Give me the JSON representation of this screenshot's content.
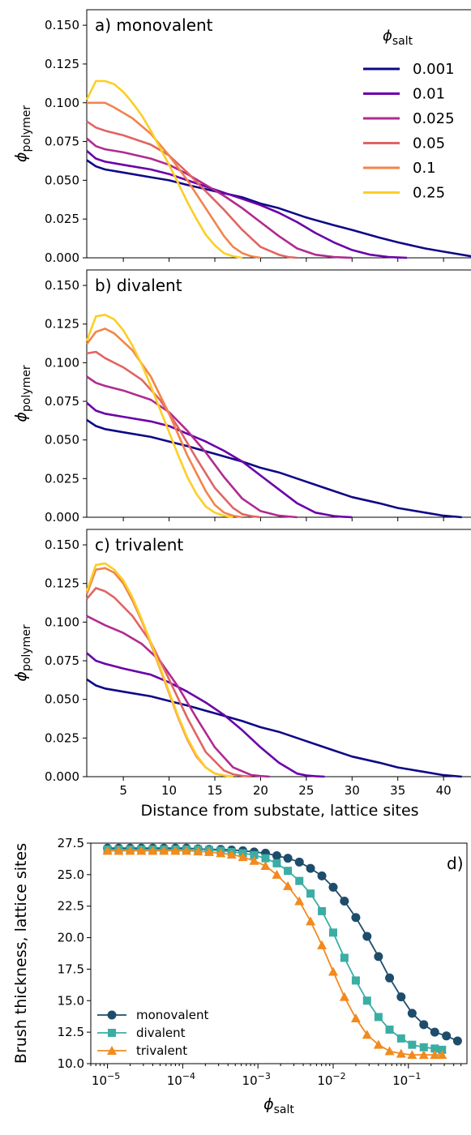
{
  "chart_data": [
    {
      "type": "line",
      "panel_label": "a) monovalent",
      "ylabel_main": "ϕ",
      "ylabel_sub": "polymer",
      "ylim": [
        0,
        0.16
      ],
      "yticks": [
        "0.000",
        "0.025",
        "0.050",
        "0.075",
        "0.100",
        "0.125",
        "0.150"
      ],
      "xlim": [
        1,
        43
      ],
      "legend_title_main": "ϕ",
      "legend_title_sub": "salt",
      "series": [
        {
          "name": "0.001",
          "color": "#0d0887",
          "x": [
            1,
            2,
            3,
            5,
            8,
            10,
            12,
            15,
            18,
            20,
            22,
            25,
            28,
            30,
            33,
            35,
            38,
            40,
            43
          ],
          "y": [
            0.063,
            0.059,
            0.057,
            0.055,
            0.052,
            0.05,
            0.047,
            0.043,
            0.039,
            0.035,
            0.032,
            0.026,
            0.021,
            0.018,
            0.013,
            0.01,
            0.006,
            0.004,
            0.001
          ]
        },
        {
          "name": "0.01",
          "color": "#6a00a8",
          "x": [
            1,
            2,
            3,
            5,
            8,
            10,
            12,
            14,
            16,
            18,
            20,
            22,
            24,
            26,
            28,
            30,
            32,
            34,
            35,
            36
          ],
          "y": [
            0.069,
            0.064,
            0.062,
            0.06,
            0.057,
            0.054,
            0.05,
            0.046,
            0.042,
            0.038,
            0.034,
            0.029,
            0.023,
            0.016,
            0.01,
            0.005,
            0.002,
            0.0005,
            0.0002,
            0
          ]
        },
        {
          "name": "0.025",
          "color": "#b12a90",
          "x": [
            1,
            2,
            3,
            5,
            8,
            10,
            12,
            14,
            16,
            18,
            20,
            22,
            24,
            26,
            28,
            29,
            30
          ],
          "y": [
            0.077,
            0.072,
            0.07,
            0.068,
            0.064,
            0.06,
            0.054,
            0.047,
            0.04,
            0.032,
            0.023,
            0.014,
            0.006,
            0.002,
            0.0005,
            0.0002,
            0
          ]
        },
        {
          "name": "0.05",
          "color": "#e16462",
          "x": [
            1,
            2,
            3,
            5,
            8,
            10,
            12,
            14,
            16,
            18,
            20,
            22,
            23,
            24
          ],
          "y": [
            0.088,
            0.084,
            0.082,
            0.079,
            0.073,
            0.066,
            0.055,
            0.043,
            0.031,
            0.018,
            0.007,
            0.002,
            0.0005,
            0
          ]
        },
        {
          "name": "0.1",
          "color": "#f2844b",
          "x": [
            1,
            2,
            3,
            4,
            6,
            8,
            10,
            12,
            14,
            16,
            17,
            18,
            19,
            20
          ],
          "y": [
            0.1,
            0.1,
            0.1,
            0.097,
            0.09,
            0.08,
            0.066,
            0.05,
            0.032,
            0.014,
            0.007,
            0.003,
            0.001,
            0
          ]
        },
        {
          "name": "0.25",
          "color": "#fcce25",
          "x": [
            1,
            2,
            3,
            4,
            5,
            6,
            7,
            8,
            9,
            10,
            11,
            12,
            13,
            14,
            15,
            16,
            17,
            18
          ],
          "y": [
            0.102,
            0.114,
            0.114,
            0.112,
            0.107,
            0.1,
            0.092,
            0.082,
            0.071,
            0.06,
            0.048,
            0.036,
            0.025,
            0.015,
            0.008,
            0.003,
            0.001,
            0
          ]
        }
      ]
    },
    {
      "type": "line",
      "panel_label": "b) divalent",
      "ylabel_main": "ϕ",
      "ylabel_sub": "polymer",
      "ylim": [
        0,
        0.16
      ],
      "yticks": [
        "0.000",
        "0.025",
        "0.050",
        "0.075",
        "0.100",
        "0.125",
        "0.150"
      ],
      "xlim": [
        1,
        43
      ],
      "series": [
        {
          "name": "0.001",
          "color": "#0d0887",
          "x": [
            1,
            2,
            3,
            5,
            8,
            10,
            12,
            15,
            18,
            20,
            22,
            25,
            28,
            30,
            33,
            35,
            38,
            40,
            42
          ],
          "y": [
            0.063,
            0.059,
            0.057,
            0.055,
            0.052,
            0.049,
            0.046,
            0.041,
            0.036,
            0.032,
            0.029,
            0.023,
            0.017,
            0.013,
            0.009,
            0.006,
            0.003,
            0.001,
            0
          ]
        },
        {
          "name": "0.01",
          "color": "#6a00a8",
          "x": [
            1,
            2,
            3,
            5,
            8,
            10,
            12,
            14,
            16,
            18,
            20,
            22,
            24,
            26,
            28,
            29,
            30
          ],
          "y": [
            0.074,
            0.069,
            0.067,
            0.065,
            0.062,
            0.059,
            0.054,
            0.049,
            0.043,
            0.036,
            0.027,
            0.018,
            0.009,
            0.003,
            0.0008,
            0.0003,
            0
          ]
        },
        {
          "name": "0.025",
          "color": "#b12a90",
          "x": [
            1,
            2,
            3,
            5,
            8,
            10,
            12,
            14,
            16,
            18,
            20,
            22,
            24
          ],
          "y": [
            0.091,
            0.087,
            0.085,
            0.082,
            0.076,
            0.068,
            0.056,
            0.042,
            0.026,
            0.012,
            0.004,
            0.001,
            0
          ]
        },
        {
          "name": "0.05",
          "color": "#e16462",
          "x": [
            1,
            2,
            3,
            5,
            7,
            9,
            11,
            13,
            15,
            17,
            18,
            19,
            20
          ],
          "y": [
            0.106,
            0.107,
            0.103,
            0.097,
            0.089,
            0.076,
            0.058,
            0.038,
            0.019,
            0.006,
            0.002,
            0.0007,
            0
          ]
        },
        {
          "name": "0.1",
          "color": "#f2844b",
          "x": [
            1,
            2,
            3,
            4,
            6,
            8,
            10,
            12,
            14,
            15,
            16,
            17,
            18
          ],
          "y": [
            0.112,
            0.12,
            0.122,
            0.119,
            0.108,
            0.091,
            0.067,
            0.04,
            0.017,
            0.008,
            0.003,
            0.001,
            0
          ]
        },
        {
          "name": "0.25",
          "color": "#fcce25",
          "x": [
            1,
            2,
            3,
            4,
            5,
            6,
            7,
            8,
            9,
            10,
            11,
            12,
            13,
            14,
            15,
            16,
            17
          ],
          "y": [
            0.114,
            0.13,
            0.131,
            0.128,
            0.121,
            0.111,
            0.099,
            0.085,
            0.07,
            0.055,
            0.04,
            0.026,
            0.015,
            0.007,
            0.003,
            0.001,
            0
          ]
        }
      ]
    },
    {
      "type": "line",
      "panel_label": "c) trivalent",
      "ylabel_main": "ϕ",
      "ylabel_sub": "polymer",
      "ylim": [
        0,
        0.16
      ],
      "yticks": [
        "0.000",
        "0.025",
        "0.050",
        "0.075",
        "0.100",
        "0.125",
        "0.150"
      ],
      "xlim": [
        1,
        43
      ],
      "xticks": [
        "5",
        "10",
        "15",
        "20",
        "25",
        "30",
        "35",
        "40"
      ],
      "xlabel": "Distance from substate, lattice sites",
      "series": [
        {
          "name": "0.001",
          "color": "#0d0887",
          "x": [
            1,
            2,
            3,
            5,
            8,
            10,
            12,
            15,
            18,
            20,
            22,
            25,
            28,
            30,
            33,
            35,
            38,
            40,
            42
          ],
          "y": [
            0.063,
            0.059,
            0.057,
            0.055,
            0.052,
            0.049,
            0.046,
            0.041,
            0.036,
            0.032,
            0.029,
            0.023,
            0.017,
            0.013,
            0.009,
            0.006,
            0.003,
            0.001,
            0
          ]
        },
        {
          "name": "0.01",
          "color": "#6a00a8",
          "x": [
            1,
            2,
            3,
            5,
            8,
            10,
            12,
            14,
            16,
            18,
            20,
            22,
            24,
            25,
            26,
            27
          ],
          "y": [
            0.08,
            0.075,
            0.073,
            0.07,
            0.066,
            0.061,
            0.055,
            0.048,
            0.04,
            0.03,
            0.019,
            0.009,
            0.002,
            0.0008,
            0.0003,
            0
          ]
        },
        {
          "name": "0.025",
          "color": "#b12a90",
          "x": [
            1,
            2,
            3,
            5,
            7,
            9,
            11,
            13,
            15,
            17,
            19,
            20,
            21
          ],
          "y": [
            0.104,
            0.101,
            0.098,
            0.093,
            0.086,
            0.075,
            0.058,
            0.038,
            0.019,
            0.006,
            0.001,
            0.0004,
            0
          ]
        },
        {
          "name": "0.05",
          "color": "#e16462",
          "x": [
            1,
            2,
            3,
            4,
            6,
            8,
            10,
            12,
            14,
            16,
            17,
            18,
            19
          ],
          "y": [
            0.115,
            0.122,
            0.12,
            0.116,
            0.104,
            0.087,
            0.063,
            0.038,
            0.016,
            0.004,
            0.0015,
            0.0005,
            0
          ]
        },
        {
          "name": "0.1",
          "color": "#f2844b",
          "x": [
            1,
            2,
            3,
            4,
            5,
            6,
            7,
            8,
            9,
            10,
            11,
            12,
            13,
            14,
            15,
            16,
            17
          ],
          "y": [
            0.118,
            0.134,
            0.135,
            0.132,
            0.125,
            0.114,
            0.101,
            0.086,
            0.07,
            0.054,
            0.038,
            0.024,
            0.013,
            0.006,
            0.002,
            0.0008,
            0
          ]
        },
        {
          "name": "0.25",
          "color": "#fcce25",
          "x": [
            1,
            2,
            3,
            4,
            5,
            6,
            7,
            8,
            9,
            10,
            11,
            12,
            13,
            14,
            15,
            16,
            17
          ],
          "y": [
            0.12,
            0.137,
            0.138,
            0.134,
            0.127,
            0.116,
            0.102,
            0.087,
            0.071,
            0.055,
            0.039,
            0.025,
            0.014,
            0.006,
            0.002,
            0.0008,
            0
          ]
        }
      ]
    },
    {
      "type": "line",
      "panel_label": "d)",
      "log_x": true,
      "xlim": [
        6e-06,
        0.6
      ],
      "ylim": [
        10,
        27.5
      ],
      "yticks": [
        "10.0",
        "12.5",
        "15.0",
        "17.5",
        "20.0",
        "22.5",
        "25.0",
        "27.5"
      ],
      "xticks": [
        "10",
        "10",
        "10",
        "10",
        "10"
      ],
      "xtick_exponents": [
        "−5",
        "−4",
        "−3",
        "−2",
        "−1"
      ],
      "ylabel": "Brush thickness, lattice sites",
      "xlabel_main": "ϕ",
      "xlabel_sub": "salt",
      "legend_placement": "lower-left",
      "series": [
        {
          "name": "monovalent",
          "color": "#1e4c6b",
          "marker": "circle",
          "x": [
            1e-05,
            1.41e-05,
            2e-05,
            2.82e-05,
            4e-05,
            5.62e-05,
            8e-05,
            0.000112,
            0.00016,
            0.000224,
            0.00032,
            0.000447,
            0.00063,
            0.00089,
            0.00126,
            0.00178,
            0.0025,
            0.00355,
            0.005,
            0.00708,
            0.01,
            0.0141,
            0.02,
            0.0282,
            0.04,
            0.0562,
            0.08,
            0.112,
            0.16,
            0.224,
            0.32,
            0.45
          ],
          "y": [
            27.1,
            27.1,
            27.1,
            27.1,
            27.1,
            27.1,
            27.1,
            27.1,
            27.05,
            27.0,
            27.0,
            26.95,
            26.9,
            26.8,
            26.7,
            26.5,
            26.3,
            26.0,
            25.5,
            24.9,
            24.0,
            22.9,
            21.6,
            20.1,
            18.5,
            16.8,
            15.3,
            14.0,
            13.1,
            12.5,
            12.2,
            11.8
          ]
        },
        {
          "name": "divalent",
          "color": "#3aada4",
          "marker": "square",
          "x": [
            1e-05,
            1.41e-05,
            2e-05,
            2.82e-05,
            4e-05,
            5.62e-05,
            8e-05,
            0.000112,
            0.00016,
            0.000224,
            0.00032,
            0.000447,
            0.00063,
            0.00089,
            0.00126,
            0.00178,
            0.0025,
            0.00355,
            0.005,
            0.00708,
            0.01,
            0.0141,
            0.02,
            0.0282,
            0.04,
            0.0562,
            0.08,
            0.112,
            0.16,
            0.224,
            0.28
          ],
          "y": [
            27.0,
            27.0,
            27.0,
            27.0,
            27.0,
            27.0,
            27.0,
            27.0,
            27.0,
            26.95,
            26.9,
            26.8,
            26.7,
            26.55,
            26.3,
            25.9,
            25.3,
            24.5,
            23.5,
            22.1,
            20.4,
            18.4,
            16.6,
            15.0,
            13.7,
            12.7,
            12.0,
            11.5,
            11.3,
            11.2,
            11.1
          ]
        },
        {
          "name": "trivalent",
          "color": "#f28a1e",
          "marker": "triangle",
          "x": [
            1e-05,
            1.41e-05,
            2e-05,
            2.82e-05,
            4e-05,
            5.62e-05,
            8e-05,
            0.000112,
            0.00016,
            0.000224,
            0.00032,
            0.000447,
            0.00063,
            0.00089,
            0.00126,
            0.00178,
            0.0025,
            0.00355,
            0.005,
            0.00708,
            0.01,
            0.0141,
            0.02,
            0.0282,
            0.04,
            0.0562,
            0.08,
            0.112,
            0.16,
            0.224,
            0.28
          ],
          "y": [
            26.9,
            26.9,
            26.9,
            26.9,
            26.9,
            26.9,
            26.9,
            26.9,
            26.85,
            26.8,
            26.7,
            26.6,
            26.4,
            26.1,
            25.7,
            25.0,
            24.1,
            22.9,
            21.3,
            19.4,
            17.3,
            15.3,
            13.6,
            12.3,
            11.5,
            11.0,
            10.8,
            10.7,
            10.7,
            10.7,
            10.7
          ]
        }
      ]
    }
  ]
}
